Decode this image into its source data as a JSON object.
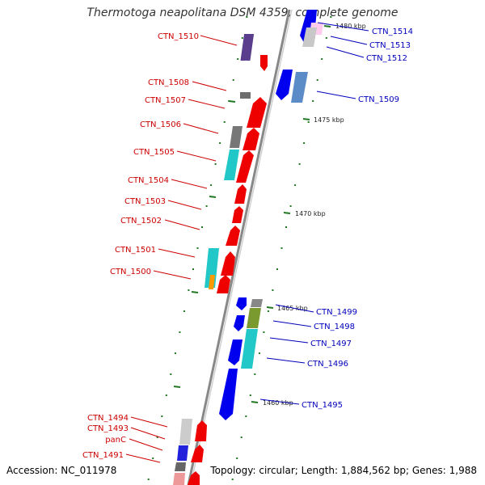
{
  "title": "Thermotoga neapolitana DSM 4359, complete genome",
  "footer": {
    "accession": "Accession: NC_011978",
    "stats": "Topology: circular; Length: 1,884,562 bp; Genes: 1,988"
  },
  "colors": {
    "forward_label": "#cc0000",
    "reverse_label": "#0000bb",
    "forward_gene": "#ee0000",
    "reverse_gene": "#0000ee",
    "backbone": "#888888",
    "tick": "#227722"
  },
  "kbp_labels": [
    "1480 kbp",
    "1475 kbp",
    "1470 kbp",
    "1465 kbp",
    "1460 kbp"
  ],
  "left_labels": [
    "CTN_1510",
    "CTN_1508",
    "CTN_1507",
    "CTN_1506",
    "CTN_1505",
    "CTN_1504",
    "CTN_1503",
    "CTN_1502",
    "CTN_1501",
    "CTN_1500",
    "CTN_1494",
    "CTN_1493",
    "panC",
    "CTN_1491"
  ],
  "right_labels": [
    "CTN_1514",
    "CTN_1513",
    "CTN_1512",
    "CTN_1509",
    "CTN_1499",
    "CTN_1498",
    "CTN_1497",
    "CTN_1496",
    "CTN_1495"
  ]
}
